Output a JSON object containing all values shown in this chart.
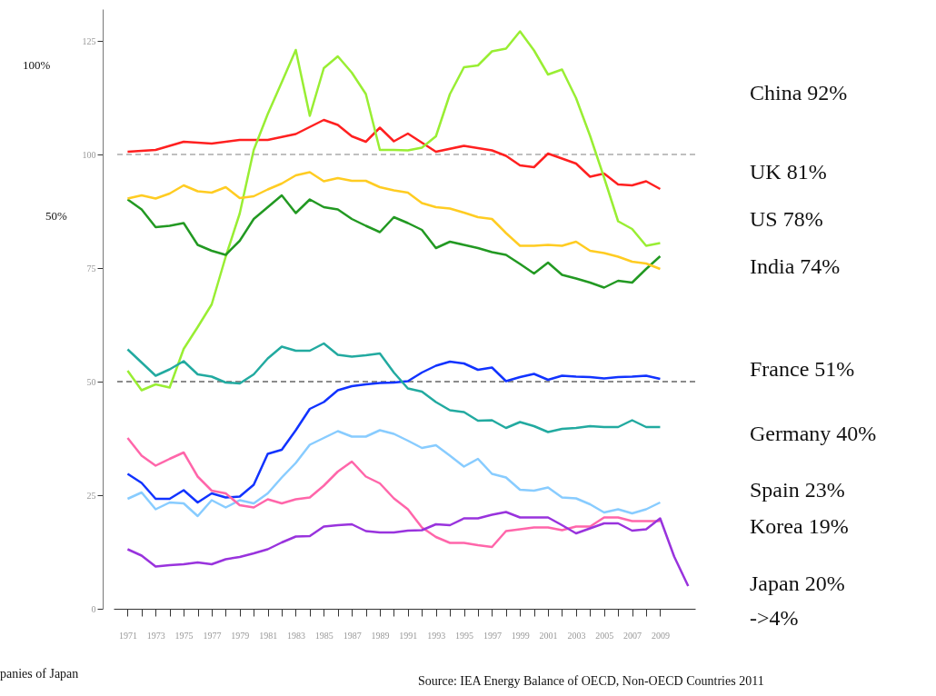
{
  "chart_data": {
    "type": "line",
    "x": [
      1971,
      1972,
      1973,
      1974,
      1975,
      1976,
      1977,
      1978,
      1979,
      1980,
      1981,
      1982,
      1983,
      1984,
      1985,
      1986,
      1987,
      1988,
      1989,
      1990,
      1991,
      1992,
      1993,
      1994,
      1995,
      1996,
      1997,
      1998,
      1999,
      2000,
      2001,
      2002,
      2003,
      2004,
      2005,
      2006,
      2007,
      2008,
      2009
    ],
    "series": [
      {
        "name": "China 92%",
        "color": "#ff2020",
        "x": [
          1971,
          1973,
          1975,
          1977,
          1979,
          1981,
          1983,
          1985,
          1986,
          1987,
          1988,
          1989,
          1990,
          1991,
          1993,
          1995,
          1997,
          1998,
          1999,
          2000,
          2001,
          2003,
          2004,
          2005,
          2006,
          2007,
          2008,
          2009
        ],
        "values": [
          100.6,
          101,
          102.8,
          102.4,
          103.2,
          103.2,
          104.5,
          107.6,
          106.5,
          104,
          102.8,
          105.9,
          102.9,
          104.6,
          100.6,
          101.9,
          100.9,
          99.7,
          97.6,
          97.2,
          100.2,
          98,
          95.1,
          95.8,
          93.4,
          93.2,
          94.1,
          92.4
        ]
      },
      {
        "name": "UK 81%",
        "color": "#99ee33",
        "values": [
          52.4,
          48.1,
          49.4,
          48.7,
          57.2,
          62,
          67,
          77.5,
          87,
          101,
          108.9,
          115.9,
          123,
          108.5,
          119,
          121.6,
          118,
          113.3,
          101,
          101,
          100.9,
          101.5,
          104,
          113.3,
          119.2,
          119.6,
          122.7,
          123.3,
          127.1,
          122.9,
          117.6,
          118.7,
          112.4,
          104.1,
          94.9,
          85.3,
          83.6,
          79.9,
          80.5
        ]
      },
      {
        "name": "US 78%",
        "color": "#229922",
        "values": [
          90.1,
          87.9,
          84,
          84.3,
          84.9,
          80.1,
          78.8,
          77.9,
          81,
          85.8,
          88.4,
          91,
          87.1,
          90.1,
          88.4,
          87.9,
          85.8,
          84.3,
          82.9,
          86.2,
          84.9,
          83.4,
          79.4,
          80.8,
          80.1,
          79.4,
          78.5,
          77.9,
          75.9,
          73.8,
          76.2,
          73.5,
          72.7,
          71.8,
          70.7,
          72.2,
          71.8,
          74.8,
          77.6
        ]
      },
      {
        "name": "India 74%",
        "color": "#ffcc22",
        "values": [
          90.3,
          91,
          90.3,
          91.4,
          93.2,
          91.9,
          91.6,
          92.8,
          90.4,
          90.8,
          92.3,
          93.6,
          95.4,
          96.1,
          94.1,
          94.8,
          94.2,
          94.2,
          92.8,
          92.1,
          91.6,
          89.3,
          88.4,
          88.1,
          87.2,
          86.2,
          85.8,
          82.7,
          79.9,
          79.9,
          80.1,
          79.9,
          80.8,
          78.8,
          78.3,
          77.5,
          76.4,
          76,
          74.8
        ]
      },
      {
        "name": "France 51%",
        "color": "#1133ff",
        "values": [
          29.7,
          27.7,
          24.2,
          24.2,
          26.1,
          23.4,
          25.4,
          24.5,
          24.7,
          27.3,
          34.1,
          35,
          39.3,
          44,
          45.5,
          48.1,
          49,
          49.4,
          49.7,
          49.8,
          50.1,
          52,
          53.5,
          54.4,
          54,
          52.6,
          53.1,
          50.1,
          51,
          51.7,
          50.4,
          51.3,
          51.1,
          51,
          50.7,
          51,
          51.1,
          51.3,
          50.6
        ]
      },
      {
        "name": "Germany 40%",
        "color": "#22aaa0",
        "values": [
          57.1,
          54.2,
          51.3,
          52.7,
          54.5,
          51.6,
          51.1,
          49.8,
          49.6,
          51.6,
          55.1,
          57.7,
          56.8,
          56.8,
          58.4,
          55.9,
          55.5,
          55.8,
          56.2,
          52,
          48.5,
          47.8,
          45.5,
          43.7,
          43.3,
          41.4,
          41.5,
          39.8,
          41.1,
          40.2,
          38.9,
          39.6,
          39.8,
          40.2,
          40,
          40,
          41.5,
          40,
          40
        ]
      },
      {
        "name": "Spain 23%",
        "color": "#88ccff",
        "values": [
          24.2,
          25.6,
          21.9,
          23.4,
          23.2,
          20.4,
          23.9,
          22.3,
          23.9,
          23.2,
          25.4,
          28.9,
          32.1,
          36.1,
          37.6,
          39.1,
          37.9,
          37.9,
          39.3,
          38.5,
          37,
          35.4,
          36,
          33.7,
          31.3,
          33,
          29.7,
          28.9,
          26.2,
          26,
          26.7,
          24.5,
          24.3,
          23,
          21.2,
          21.9,
          21,
          21.9,
          23.4
        ]
      },
      {
        "name": "Korea 19%",
        "color": "#ff66aa",
        "values": [
          37.6,
          33.7,
          31.5,
          33,
          34.4,
          29.1,
          26,
          25.4,
          22.8,
          22.3,
          24.1,
          23.2,
          24.1,
          24.5,
          27.1,
          30.2,
          32.4,
          29.1,
          27.6,
          24.3,
          21.9,
          17.9,
          15.8,
          14.5,
          14.5,
          14,
          13.6,
          17.1,
          17.5,
          17.9,
          17.9,
          17.3,
          18.1,
          18.1,
          20.1,
          20.1,
          19.3,
          19.3,
          19.3
        ]
      },
      {
        "name": "Japan 20%\n->4%",
        "color": "#9933dd",
        "x": [
          1971,
          1972,
          1973,
          1974,
          1975,
          1976,
          1977,
          1978,
          1979,
          1980,
          1981,
          1982,
          1983,
          1984,
          1985,
          1986,
          1987,
          1988,
          1989,
          1990,
          1991,
          1992,
          1993,
          1994,
          1995,
          1996,
          1997,
          1998,
          1999,
          2000,
          2001,
          2002,
          2003,
          2004,
          2005,
          2006,
          2007,
          2008,
          2009,
          2010,
          2011
        ],
        "values": [
          13.1,
          11.7,
          9.3,
          9.6,
          9.8,
          10.2,
          9.8,
          10.9,
          11.4,
          12.2,
          13.1,
          14.6,
          15.9,
          16,
          18.1,
          18.4,
          18.6,
          17.1,
          16.8,
          16.8,
          17.2,
          17.3,
          18.6,
          18.4,
          19.9,
          19.9,
          20.7,
          21.3,
          20.1,
          20.1,
          20.1,
          18.4,
          16.6,
          17.7,
          18.8,
          18.8,
          17.2,
          17.5,
          19.9,
          11.5,
          5
        ]
      }
    ],
    "xlim": [
      1970,
      2011.5
    ],
    "xticks": [
      1971,
      {
        "value": 1972,
        "label": null
      },
      1973,
      {
        "value": 1974,
        "label": null
      },
      1975,
      {
        "value": 1976,
        "label": null
      },
      1977,
      {
        "value": 1978,
        "label": null
      },
      1979,
      {
        "value": 1980,
        "label": null
      },
      1981,
      {
        "value": 1982,
        "label": null
      },
      1983,
      {
        "value": 1984,
        "label": null
      },
      1985,
      {
        "value": 1986,
        "label": null
      },
      1987,
      {
        "value": 1988,
        "label": null
      },
      1989,
      {
        "value": 1990,
        "label": null
      },
      1991,
      {
        "value": 1992,
        "label": null
      },
      1993,
      {
        "value": 1994,
        "label": null
      },
      1995,
      {
        "value": 1996,
        "label": null
      },
      1997,
      {
        "value": 1998,
        "label": null
      },
      1999,
      {
        "value": 2000,
        "label": null
      },
      2001,
      {
        "value": 2002,
        "label": null
      },
      2003,
      {
        "value": 2004,
        "label": null
      },
      2005,
      {
        "value": 2006,
        "label": null
      },
      2007,
      {
        "value": 2008,
        "label": null
      },
      2009
    ],
    "ylim": [
      0,
      132
    ],
    "yticks": [
      0,
      25,
      50,
      75,
      100,
      125
    ],
    "ref_lines": [
      {
        "axis": "y",
        "value": 100,
        "color": "#aaaaaa",
        "line_style": "dashed"
      },
      {
        "axis": "y",
        "value": 50,
        "color": "#666666",
        "line_style": "dashed"
      }
    ],
    "annotations": [
      "100%",
      "50%",
      "panies of Japan",
      "Source: IEA Energy Balance of OECD, Non-OECD Countries 2011"
    ],
    "grid": false,
    "line_style": "solid"
  }
}
